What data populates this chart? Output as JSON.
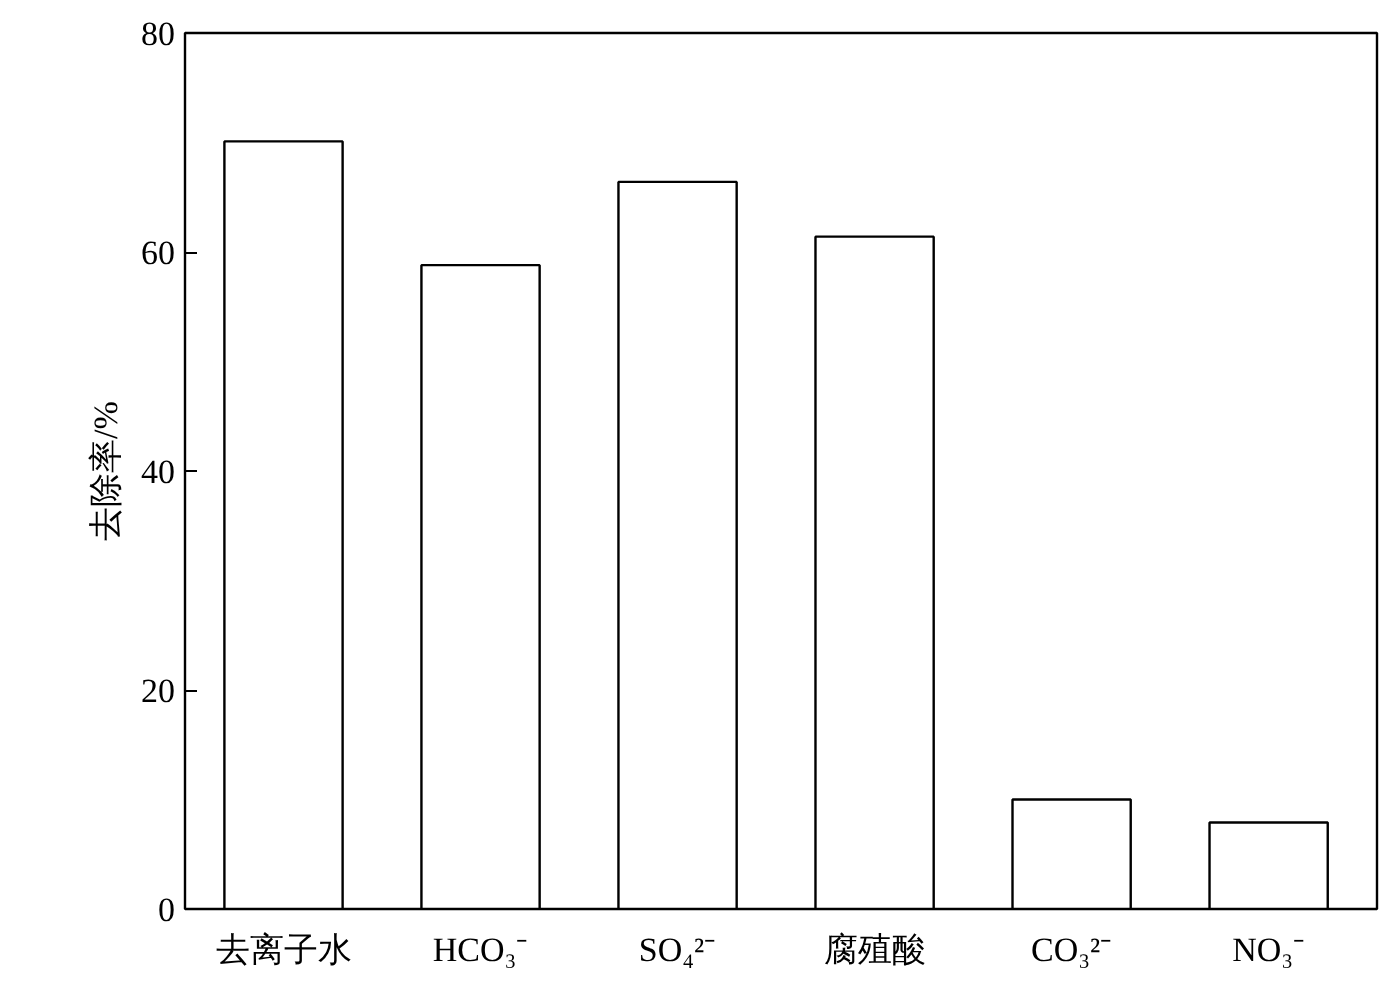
{
  "chart_data": {
    "type": "bar",
    "ylabel": "去除率/%",
    "categories": [
      "去离子水",
      "HCO₃⁻",
      "SO₄²⁻",
      "腐殖酸",
      "CO₃²⁻",
      "NO₃⁻"
    ],
    "values": [
      70.1,
      58.8,
      66.4,
      61.4,
      10.0,
      7.9
    ],
    "color": "#ffffff",
    "ylim": [
      0,
      80
    ],
    "yticks": [
      0,
      20,
      40,
      60,
      80
    ],
    "grid": false
  }
}
